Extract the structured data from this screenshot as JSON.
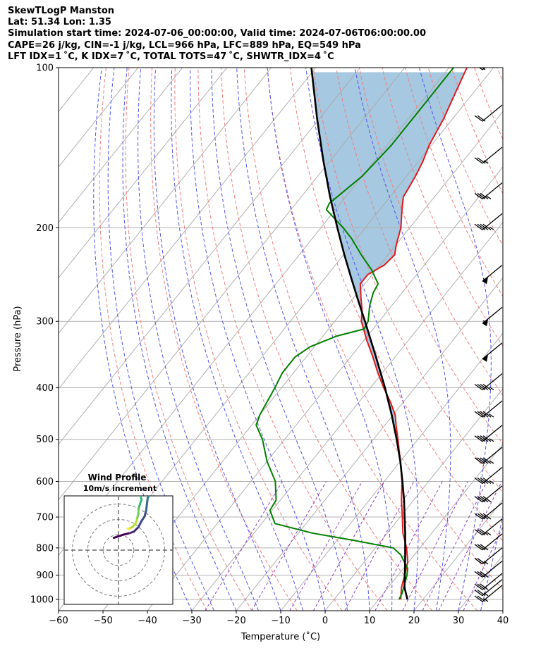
{
  "header": {
    "line1": "SkewTLogP Manston",
    "line2": "Lat: 51.34   Lon: 1.35",
    "line3": "Simulation start time: 2024-07-06_00:00:00, Valid time: 2024-07-06T06:00:00.00",
    "line4": "CAPE=26 j/kg, CIN=-1 j/kg, LCL=966 hPa, LFC=889 hPa, EQ=549 hPa",
    "line5": "LFT IDX=1 ˚C, K IDX=7 ˚C, TOTAL TOTS=47 ˚C, SHWTR_IDX=4 ˚C"
  },
  "chart_data": {
    "type": "line",
    "subtype": "skew-t log-p",
    "xlabel": "Temperature (˚C)",
    "ylabel": "Pressure (hPa)",
    "xlim": [
      -60,
      40
    ],
    "ylim": [
      1050,
      100
    ],
    "yscale": "log",
    "xticks": [
      -60,
      -50,
      -40,
      -30,
      -20,
      -10,
      0,
      10,
      20,
      30,
      40
    ],
    "xtick_labels": [
      "−60",
      "−50",
      "−40",
      "−30",
      "−20",
      "−10",
      "0",
      "10",
      "20",
      "30",
      "40"
    ],
    "yticks": [
      1000,
      900,
      800,
      700,
      600,
      500,
      400,
      300,
      200,
      100
    ],
    "grid": true,
    "colors": {
      "temperature": "#e41a1c",
      "dewpoint": "#008000",
      "parcel": "#000000",
      "cape_fill": "#a6c8e0",
      "dry_adiabats": "#f08080",
      "moist_adiabats": "#5555ee",
      "mixing_ratio": "#9040c0",
      "isotherms": "#aaaaaa",
      "barbs": "#000000"
    },
    "series": [
      {
        "name": "",
        "role": "temperature",
        "color": "#e41a1c",
        "points": [
          {
            "p": 1000,
            "t": 15.0
          },
          {
            "p": 975,
            "t": 14.0
          },
          {
            "p": 950,
            "t": 13.0
          },
          {
            "p": 900,
            "t": 11.5
          },
          {
            "p": 850,
            "t": 9.8
          },
          {
            "p": 800,
            "t": 7.0
          },
          {
            "p": 750,
            "t": 3.5
          },
          {
            "p": 700,
            "t": 0.5
          },
          {
            "p": 650,
            "t": -2.8
          },
          {
            "p": 600,
            "t": -6.0
          },
          {
            "p": 550,
            "t": -10.0
          },
          {
            "p": 500,
            "t": -14.5
          },
          {
            "p": 470,
            "t": -17.5
          },
          {
            "p": 450,
            "t": -19.5
          },
          {
            "p": 425,
            "t": -23.0
          },
          {
            "p": 400,
            "t": -27.0
          },
          {
            "p": 375,
            "t": -31.0
          },
          {
            "p": 350,
            "t": -35.0
          },
          {
            "p": 325,
            "t": -39.5
          },
          {
            "p": 300,
            "t": -44.0
          },
          {
            "p": 285,
            "t": -46.0
          },
          {
            "p": 270,
            "t": -48.5
          },
          {
            "p": 255,
            "t": -51.0
          },
          {
            "p": 245,
            "t": -51.0
          },
          {
            "p": 235,
            "t": -49.0
          },
          {
            "p": 225,
            "t": -48.5
          },
          {
            "p": 215,
            "t": -50.0
          },
          {
            "p": 200,
            "t": -52.0
          },
          {
            "p": 185,
            "t": -55.0
          },
          {
            "p": 175,
            "t": -57.0
          },
          {
            "p": 160,
            "t": -58.0
          },
          {
            "p": 150,
            "t": -59.0
          },
          {
            "p": 140,
            "t": -60.5
          },
          {
            "p": 125,
            "t": -62.0
          },
          {
            "p": 115,
            "t": -63.5
          },
          {
            "p": 100,
            "t": -66.0
          }
        ]
      },
      {
        "name": "",
        "role": "dewpoint",
        "color": "#008000",
        "points": [
          {
            "p": 1000,
            "t": 14.6
          },
          {
            "p": 975,
            "t": 14.2
          },
          {
            "p": 950,
            "t": 13.5
          },
          {
            "p": 900,
            "t": 12.0
          },
          {
            "p": 875,
            "t": 11.0
          },
          {
            "p": 850,
            "t": 9.0
          },
          {
            "p": 825,
            "t": 7.0
          },
          {
            "p": 800,
            "t": 4.0
          },
          {
            "p": 775,
            "t": -6.0
          },
          {
            "p": 750,
            "t": -17.0
          },
          {
            "p": 720,
            "t": -27.0
          },
          {
            "p": 680,
            "t": -30.5
          },
          {
            "p": 650,
            "t": -31.0
          },
          {
            "p": 600,
            "t": -34.5
          },
          {
            "p": 550,
            "t": -40.0
          },
          {
            "p": 500,
            "t": -45.0
          },
          {
            "p": 470,
            "t": -49.0
          },
          {
            "p": 450,
            "t": -50.0
          },
          {
            "p": 400,
            "t": -51.5
          },
          {
            "p": 375,
            "t": -52.5
          },
          {
            "p": 350,
            "t": -52.5
          },
          {
            "p": 335,
            "t": -51.0
          },
          {
            "p": 320,
            "t": -47.0
          },
          {
            "p": 310,
            "t": -42.0
          },
          {
            "p": 300,
            "t": -42.5
          },
          {
            "p": 280,
            "t": -45.0
          },
          {
            "p": 265,
            "t": -46.5
          },
          {
            "p": 255,
            "t": -47.0
          },
          {
            "p": 240,
            "t": -51.0
          },
          {
            "p": 225,
            "t": -56.0
          },
          {
            "p": 210,
            "t": -61.0
          },
          {
            "p": 200,
            "t": -65.0
          },
          {
            "p": 185,
            "t": -72.0
          },
          {
            "p": 180,
            "t": -72.5
          },
          {
            "p": 160,
            "t": -70.0
          },
          {
            "p": 140,
            "t": -69.0
          },
          {
            "p": 120,
            "t": -69.0
          },
          {
            "p": 100,
            "t": -69.0
          }
        ]
      },
      {
        "name": "",
        "role": "parcel",
        "color": "#000000",
        "points": [
          {
            "p": 1000,
            "t": 16.5
          },
          {
            "p": 966,
            "t": 14.6
          },
          {
            "p": 950,
            "t": 13.7
          },
          {
            "p": 900,
            "t": 11.5
          },
          {
            "p": 850,
            "t": 9.2
          },
          {
            "p": 800,
            "t": 6.7
          },
          {
            "p": 750,
            "t": 4.0
          },
          {
            "p": 700,
            "t": 1.0
          },
          {
            "p": 650,
            "t": -2.2
          },
          {
            "p": 600,
            "t": -5.9
          },
          {
            "p": 550,
            "t": -10.0
          },
          {
            "p": 500,
            "t": -14.8
          },
          {
            "p": 450,
            "t": -20.3
          },
          {
            "p": 400,
            "t": -26.7
          },
          {
            "p": 350,
            "t": -34.3
          },
          {
            "p": 300,
            "t": -43.2
          },
          {
            "p": 275,
            "t": -48.3
          },
          {
            "p": 250,
            "t": -53.8
          },
          {
            "p": 225,
            "t": -59.8
          },
          {
            "p": 200,
            "t": -66.3
          },
          {
            "p": 175,
            "t": -73.5
          },
          {
            "p": 150,
            "t": -81.4
          },
          {
            "p": 125,
            "t": -90.4
          },
          {
            "p": 100,
            "t": -101.0
          }
        ]
      }
    ],
    "cape_shading": "between parcel and temperature where parcel is warmer, from 549 hPa up to 100 hPa",
    "wind_barbs": [
      {
        "p": 1000,
        "speed_kt": 25,
        "dir": 240
      },
      {
        "p": 975,
        "speed_kt": 25,
        "dir": 240
      },
      {
        "p": 950,
        "speed_kt": 30,
        "dir": 240
      },
      {
        "p": 900,
        "speed_kt": 30,
        "dir": 240
      },
      {
        "p": 850,
        "speed_kt": 25,
        "dir": 240
      },
      {
        "p": 800,
        "speed_kt": 30,
        "dir": 240
      },
      {
        "p": 750,
        "speed_kt": 35,
        "dir": 235
      },
      {
        "p": 700,
        "speed_kt": 40,
        "dir": 235
      },
      {
        "p": 650,
        "speed_kt": 40,
        "dir": 235
      },
      {
        "p": 600,
        "speed_kt": 45,
        "dir": 235
      },
      {
        "p": 550,
        "speed_kt": 45,
        "dir": 235
      },
      {
        "p": 500,
        "speed_kt": 45,
        "dir": 235
      },
      {
        "p": 450,
        "speed_kt": 45,
        "dir": 235
      },
      {
        "p": 400,
        "speed_kt": 45,
        "dir": 235
      },
      {
        "p": 350,
        "speed_kt": 50,
        "dir": 235
      },
      {
        "p": 300,
        "speed_kt": 55,
        "dir": 235
      },
      {
        "p": 250,
        "speed_kt": 55,
        "dir": 235
      },
      {
        "p": 200,
        "speed_kt": 45,
        "dir": 235
      },
      {
        "p": 175,
        "speed_kt": 35,
        "dir": 235
      },
      {
        "p": 150,
        "speed_kt": 25,
        "dir": 235
      },
      {
        "p": 125,
        "speed_kt": 20,
        "dir": 235
      },
      {
        "p": 100,
        "speed_kt": 20,
        "dir": 235
      }
    ],
    "hodograph": {
      "title": "Wind Profile",
      "subtitle": "10m/s increment",
      "rings_ms": [
        10,
        20,
        30
      ],
      "range_ms": 30,
      "points_uv": [
        [
          -3,
          8
        ],
        [
          0,
          9
        ],
        [
          3,
          10
        ],
        [
          7,
          11
        ],
        [
          10,
          12
        ],
        [
          13,
          15
        ],
        [
          15,
          19
        ],
        [
          17,
          22
        ],
        [
          18,
          26
        ],
        [
          18.5,
          30
        ],
        [
          19,
          34
        ],
        [
          21,
          37
        ],
        [
          25,
          38
        ],
        [
          28,
          38
        ],
        [
          16,
          38
        ],
        [
          14,
          36
        ],
        [
          15,
          33
        ],
        [
          14,
          30
        ],
        [
          13,
          27
        ],
        [
          13,
          24
        ],
        [
          12,
          20
        ],
        [
          11,
          17
        ],
        [
          9,
          15
        ],
        [
          7,
          14
        ],
        [
          6,
          14
        ]
      ]
    }
  }
}
